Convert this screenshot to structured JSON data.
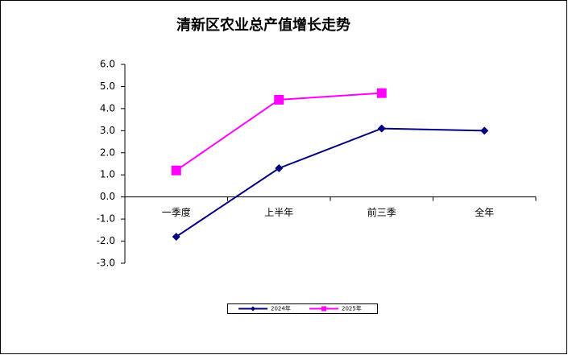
{
  "chart_data": {
    "type": "line",
    "title": "清新区农业总产值增长走势",
    "categories": [
      "一季度",
      "上半年",
      "前三季",
      "全年"
    ],
    "series": [
      {
        "name": "2024年",
        "color": "#000080",
        "marker": "diamond",
        "values": [
          -1.8,
          1.3,
          3.1,
          3.0
        ]
      },
      {
        "name": "2025年",
        "color": "#ff00ff",
        "marker": "square",
        "values": [
          1.2,
          4.4,
          4.7,
          null
        ]
      }
    ],
    "ylim": [
      -3,
      6
    ],
    "yticks": [
      {
        "value": -3,
        "label": "-3.0"
      },
      {
        "value": -2,
        "label": "-2.0"
      },
      {
        "value": -1,
        "label": "-1.0"
      },
      {
        "value": 0,
        "label": "0.0"
      },
      {
        "value": 1,
        "label": "1.0"
      },
      {
        "value": 2,
        "label": "2.0"
      },
      {
        "value": 3,
        "label": "3.0"
      },
      {
        "value": 4,
        "label": "4.0"
      },
      {
        "value": 5,
        "label": "5.0"
      },
      {
        "value": 6,
        "label": "6.0"
      }
    ],
    "grid": false,
    "legend": "bottom"
  }
}
